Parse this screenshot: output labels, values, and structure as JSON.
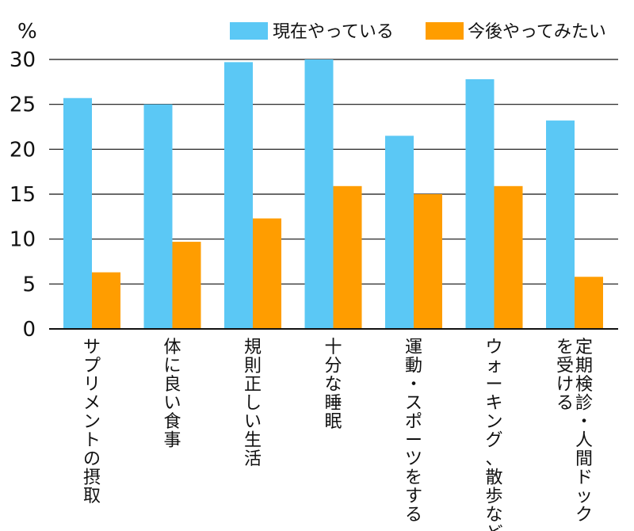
{
  "chart_data": {
    "type": "bar",
    "unit": "%",
    "categories": [
      [
        "サプリメントの摂取"
      ],
      [
        "体に良い食事"
      ],
      [
        "規則正しい生活"
      ],
      [
        "十分な睡眠"
      ],
      [
        "運動・スポーツをする"
      ],
      [
        "ウォーキング、散歩など"
      ],
      [
        "定期検診・人間ドック",
        "を受ける"
      ]
    ],
    "series": [
      {
        "name": "現在やっている",
        "color": "#5bc8f5",
        "values": [
          25.7,
          25.0,
          29.7,
          30.0,
          21.5,
          27.8,
          23.2
        ]
      },
      {
        "name": "今後やってみたい",
        "color": "#ff9d00",
        "values": [
          6.3,
          9.7,
          12.3,
          15.9,
          15.0,
          15.9,
          5.8
        ]
      }
    ],
    "ylim": [
      0,
      30
    ],
    "yticks": [
      "0",
      "5",
      "10",
      "15",
      "20",
      "25",
      "30"
    ],
    "grid": true,
    "legend": "top-right",
    "xlabel": "",
    "ylabel": ""
  }
}
